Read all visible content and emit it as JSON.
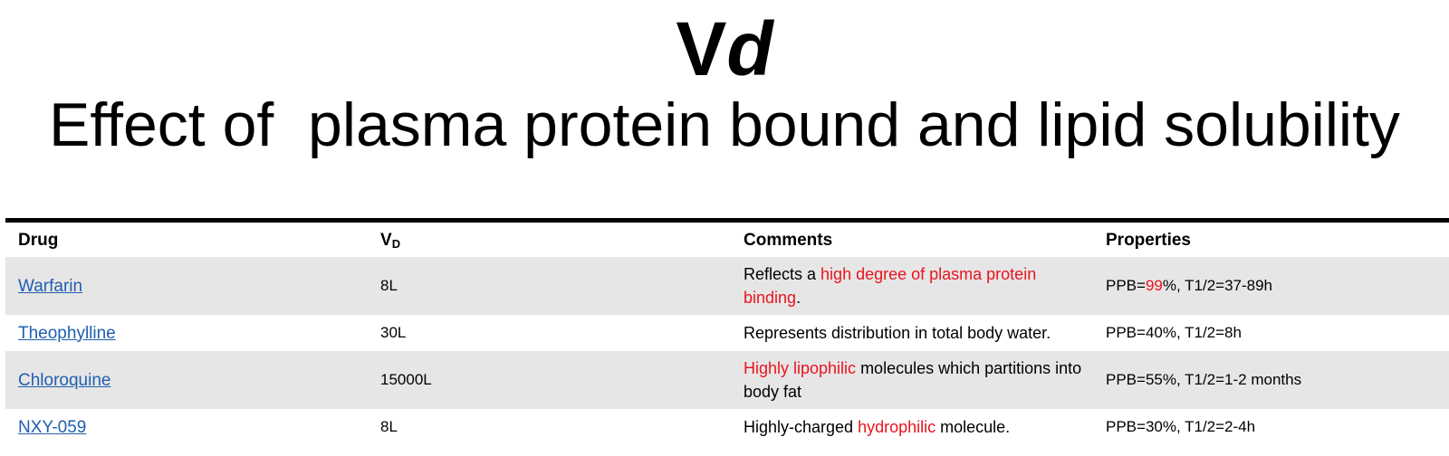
{
  "title": {
    "main": "V",
    "italic": "d"
  },
  "subtitle": "Effect of  plasma protein bound and lipid solubility",
  "table": {
    "headers": {
      "drug": "Drug",
      "vd_main": "V",
      "vd_sub": "D",
      "comments": "Comments",
      "properties": "Properties"
    },
    "rows": [
      {
        "drug": "Warfarin",
        "vd": "8L",
        "comment_pre": "Reflects a ",
        "comment_highlight": "high degree of plasma protein binding",
        "comment_post": ".",
        "prop_pre": "PPB=",
        "prop_highlight": "99",
        "prop_post": "%, T1/2=37-89h"
      },
      {
        "drug": "Theophylline",
        "vd": "30L",
        "comment": "Represents distribution in total body water.",
        "properties": "PPB=40%, T1/2=8h"
      },
      {
        "drug": "Chloroquine",
        "vd": "15000L",
        "comment_highlight": "Highly lipophilic",
        "comment_post": " molecules which partitions into body fat",
        "properties": "PPB=55%, T1/2=1-2 months"
      },
      {
        "drug": "NXY-059",
        "vd": "8L",
        "comment_pre": "Highly-charged ",
        "comment_highlight": "hydrophilic",
        "comment_post": " molecule.",
        "properties": "PPB=30%, T1/2=2-4h"
      }
    ]
  },
  "colors": {
    "highlight": "#e8141e",
    "link": "#1f5fb0",
    "row_shade": "#e7e6e6"
  }
}
